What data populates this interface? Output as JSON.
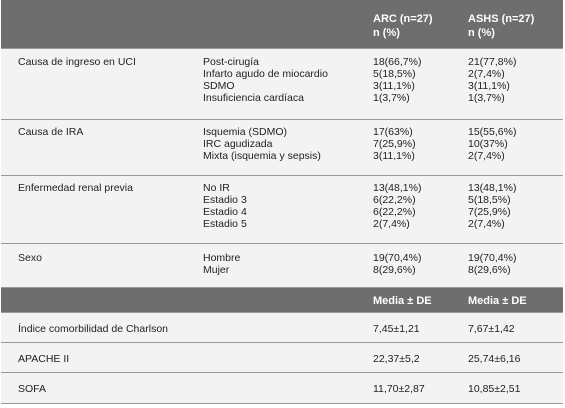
{
  "header": {
    "col_arc": "ARC (n=27)",
    "col_ashs": "ASHS (n=27)",
    "unit": "n (%)"
  },
  "groups": [
    {
      "label": "Causa de ingreso en UCI",
      "items": [
        "Post-cirugía",
        "Infarto agudo de miocardio",
        "SDMO",
        "Insuficiencia cardíaca"
      ],
      "arc": [
        "18(66,7%)",
        "5(18,5%)",
        "3(11,1%)",
        "1(3,7%)"
      ],
      "ashs": [
        "21(77,8%)",
        "2(7,4%)",
        "3(11,1%)",
        "1(3,7%)"
      ]
    },
    {
      "label": "Causa de IRA",
      "items": [
        "Isquemia (SDMO)",
        "IRC agudizada",
        "Mixta (isquemia y sepsis)"
      ],
      "arc": [
        "17(63%)",
        "7(25,9%)",
        "3(11,1%)"
      ],
      "ashs": [
        "15(55,6%)",
        "10(37%)",
        "2(7,4%)"
      ]
    },
    {
      "label": "Enfermedad renal previa",
      "items": [
        "No IR",
        "Estadio 3",
        "Estadio 4",
        "Estadio 5"
      ],
      "arc": [
        "13(48,1%)",
        "6(22,2%)",
        "6(22,2%)",
        "2(7,4%)"
      ],
      "ashs": [
        "13(48,1%)",
        "5(18,5%)",
        "7(25,9%)",
        "2(7,4%)"
      ]
    },
    {
      "label": "Sexo",
      "items": [
        "Hombre",
        "Mujer"
      ],
      "arc": [
        "19(70,4%)",
        "8(29,6%)"
      ],
      "ashs": [
        "19(70,4%)",
        "8(29,6%)"
      ]
    }
  ],
  "header2": {
    "col_arc": "Media ± DE",
    "col_ashs": "Media ± DE"
  },
  "scores": [
    {
      "label": "Índice comorbilidad de Charlson",
      "arc": "7,45±1,21",
      "ashs": "7,67±1,42"
    },
    {
      "label": "APACHE II",
      "arc": "22,37±5,2",
      "ashs": "25,74±6,16"
    },
    {
      "label": "SOFA",
      "arc": "11,70±2,87",
      "ashs": "10,85±2,51"
    }
  ]
}
